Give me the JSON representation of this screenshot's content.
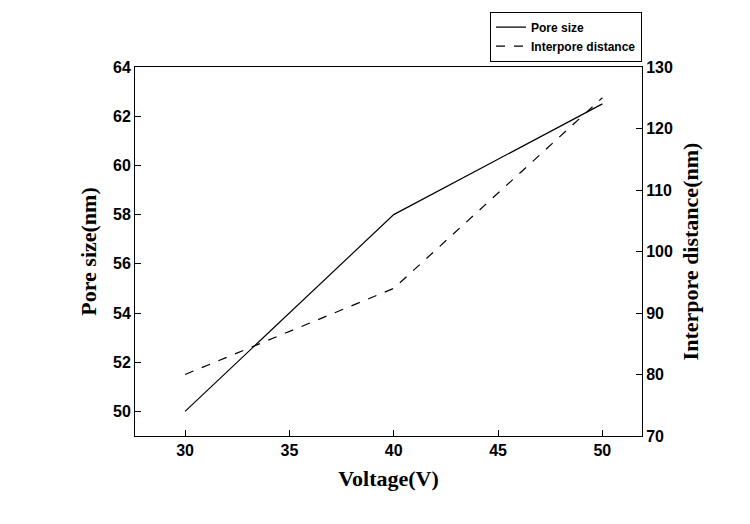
{
  "chart_data": {
    "type": "line",
    "x_label": "Voltage(V)",
    "y_label": "Pore size(nm)",
    "y2_label": "Interpore distance(nm)",
    "x": [
      30,
      40,
      50
    ],
    "series": [
      {
        "name": "Pore size",
        "color": "#000000",
        "line_style": "solid",
        "values": [
          50,
          58,
          62.5
        ]
      },
      {
        "name": "Interpore distance",
        "color": "#000000",
        "line_style": "dash",
        "axis": "y2",
        "values": [
          80,
          94,
          125
        ]
      }
    ],
    "xlim": [
      27.6,
      51.9
    ],
    "xticks": [
      30,
      35,
      40,
      45,
      50
    ],
    "ylim": [
      49,
      64
    ],
    "yticks": [
      50,
      52,
      54,
      56,
      58,
      60,
      62,
      64
    ],
    "y2lim": [
      70,
      130
    ],
    "y2ticks": [
      70,
      80,
      90,
      100,
      110,
      120,
      130
    ],
    "legend": "top right",
    "grid": false
  }
}
